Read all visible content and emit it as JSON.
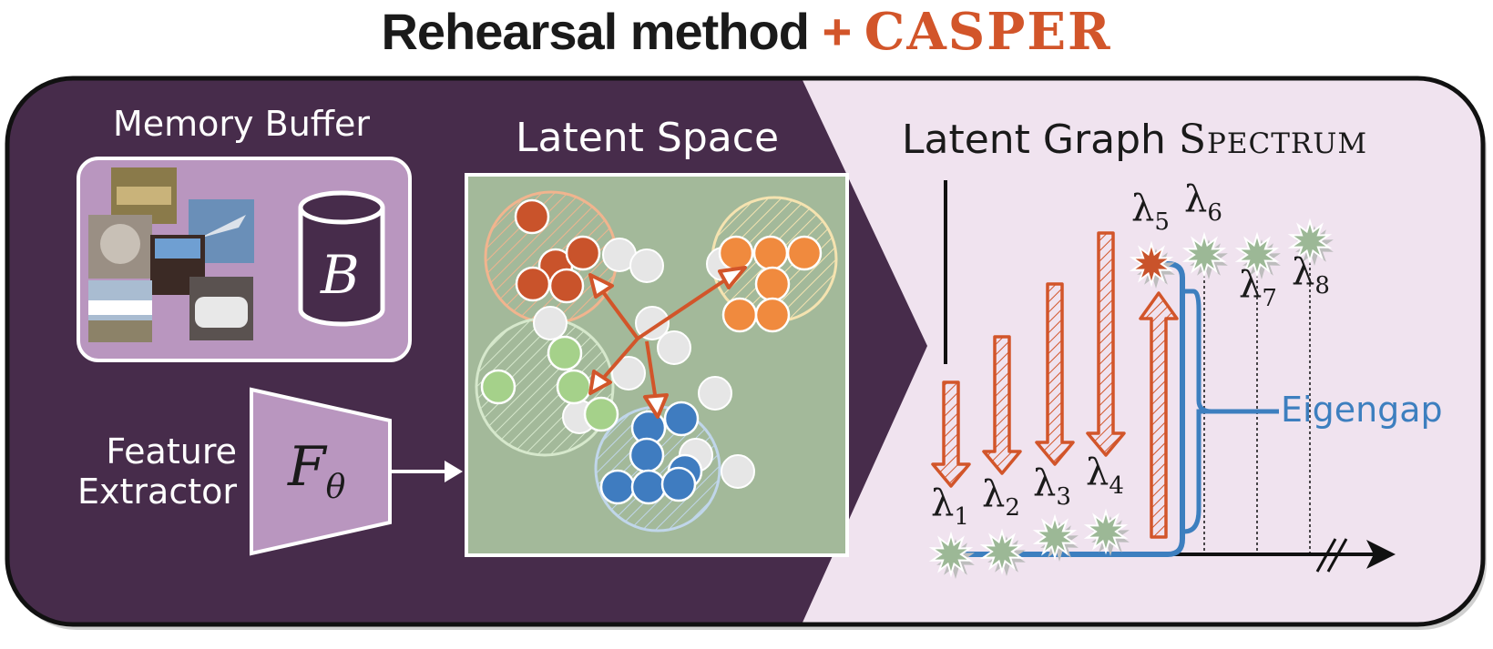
{
  "title": {
    "prefix": "Rehearsal method",
    "plus": "+",
    "brand": "CASPER"
  },
  "memory_buffer": {
    "label": "Memory Buffer",
    "buffer_symbol": "B"
  },
  "feature_extractor": {
    "label_line1": "Feature",
    "label_line2": "Extractor",
    "symbol": "F",
    "subscript": "θ"
  },
  "latent_space": {
    "label": "Latent Space"
  },
  "spectrum": {
    "label": "Latent Graph ",
    "label_smallcaps": "Spectrum",
    "eigengap_label": "Eigengap",
    "lambda_symbol": "λ",
    "indices": [
      "1",
      "2",
      "3",
      "4",
      "5",
      "6",
      "7",
      "8"
    ]
  },
  "colors": {
    "dark_panel": "#472c4b",
    "light_panel": "#f0e3ef",
    "accent_orange": "#d2552a",
    "eigengap_blue": "#3d7fbf",
    "latent_bg": "#a3b99a",
    "buffer_purple": "#b996bf"
  }
}
